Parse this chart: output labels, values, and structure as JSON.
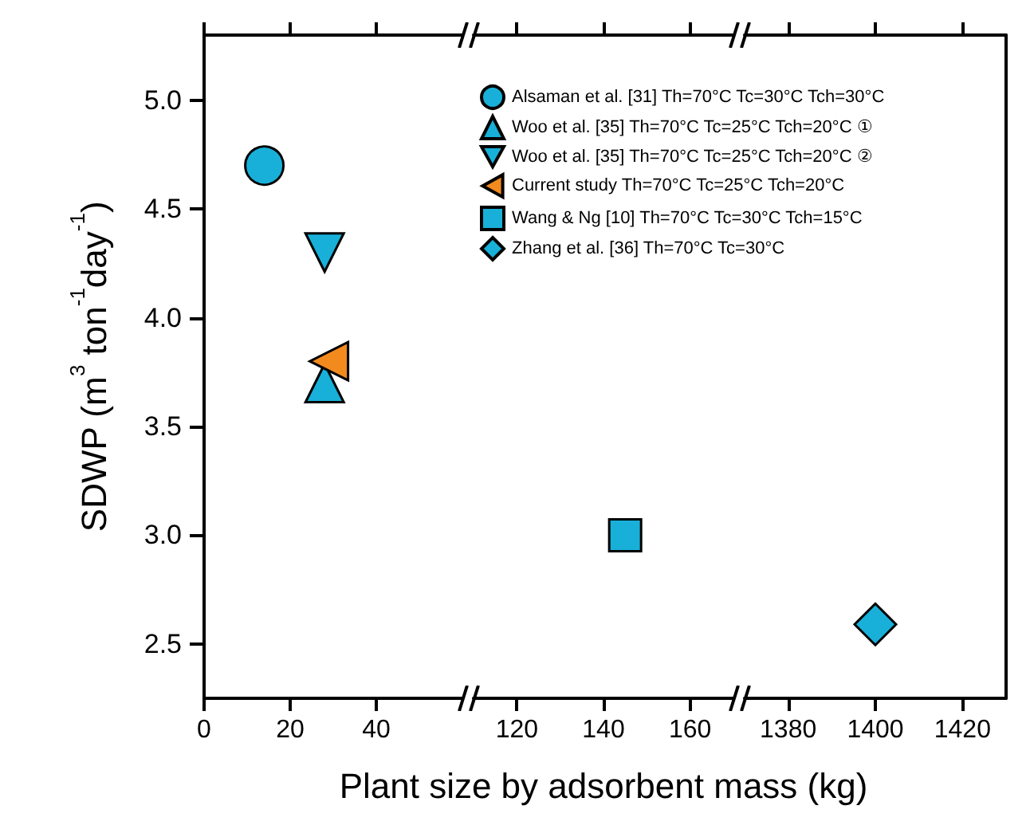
{
  "chart_data": [
    {
      "type": "scatter",
      "ylabel": "SDWP (m$^{3}$ ton$^{-1}$day$^{-1}$)",
      "xlim": [
        0,
        60
      ],
      "xticks": [
        0,
        20,
        40
      ],
      "ylim": [
        2.25,
        5.3
      ],
      "yticks": [
        {
          "value": 2.5,
          "label": "2.5"
        },
        {
          "value": 3,
          "label": "3.0"
        },
        {
          "value": 3.5,
          "label": "3.5"
        },
        {
          "value": 4,
          "label": "4.0"
        },
        {
          "value": 4.5,
          "label": "4.5"
        },
        {
          "value": 5,
          "label": "5.0"
        }
      ],
      "grid": false,
      "legend": "top right",
      "series": [
        {
          "name": "Alsaman et al. [31] Th=70°C Tc=30°C Tch=30°C",
          "color": "#18b0d8",
          "marker": "circle",
          "x": [
            14
          ],
          "values": [
            4.7
          ]
        },
        {
          "name": "Woo et al. [35] Th=70°C Tc=25°C Tch=20°C ①",
          "color": "#18b0d8",
          "marker": "triangle",
          "x": [
            28
          ],
          "values": [
            3.7
          ]
        },
        {
          "name": "Woo et al. [35] Th=70°C Tc=25°C Tch=20°C ②",
          "color": "#18b0d8",
          "marker": "triangle-down",
          "x": [
            28
          ],
          "values": [
            4.3
          ]
        },
        {
          "name": "Current study Th=70°C Tc=25°C Tch=20°C",
          "color": "#f28a1e",
          "marker": "triangle-left",
          "x": [
            29
          ],
          "values": [
            3.8
          ]
        }
      ]
    },
    {
      "type": "scatter",
      "xlabel": "Plant size by adsorbent mass (kg)",
      "xlim": [
        110,
        170
      ],
      "xticks": [
        120,
        140,
        160
      ],
      "ylim": [
        2.25,
        5.3
      ],
      "tick_labels": "x",
      "grid": false,
      "legend": "top right",
      "series": [
        {
          "name": "Wang & Ng [10] Th=70°C Tc=30°C Tch=15°C",
          "color": "#18b0d8",
          "marker": "square",
          "x": [
            145
          ],
          "values": [
            3.0
          ]
        }
      ]
    },
    {
      "type": "scatter",
      "xlim": [
        1370,
        1430
      ],
      "xticks": [
        1380,
        1400,
        1420
      ],
      "ylim": [
        2.25,
        5.3
      ],
      "tick_labels": "x",
      "grid": false,
      "legend": "top left",
      "series": [
        {
          "name": "Zhang et al. [36] Th=70°C Tc=30°C",
          "color": "#18b0d8",
          "marker": "diamond",
          "x": [
            1400
          ],
          "values": [
            2.59
          ]
        }
      ]
    }
  ]
}
